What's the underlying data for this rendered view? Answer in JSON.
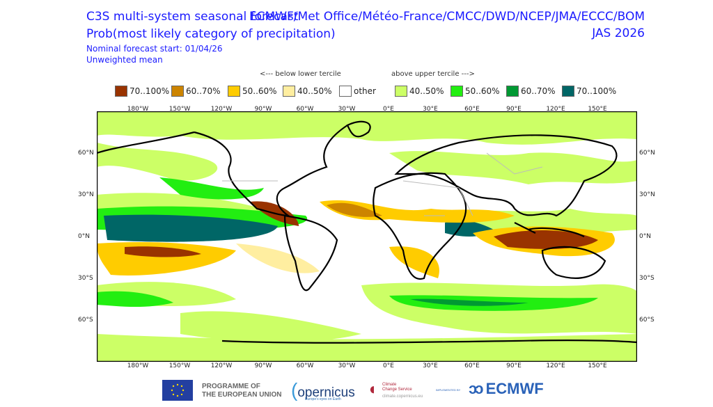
{
  "header": {
    "title": "C3S multi-system seasonal forecast",
    "subtitle": "Prob(most likely category of precipitation)",
    "providers": "ECMWF/Met Office/Météo-France/CMCC/DWD/NCEP/JMA/ECCC/BOM",
    "season": "JAS 2026",
    "forecast_start": "Nominal forecast start: 01/04/26",
    "mean_type": "Unweighted mean"
  },
  "legend": {
    "below_label": "<--- below lower tercile",
    "above_label": "above upper tercile --->",
    "items": [
      {
        "label": "70..100%",
        "color": "#993300"
      },
      {
        "label": "60..70%",
        "color": "#cc8400"
      },
      {
        "label": "50..60%",
        "color": "#ffcc00"
      },
      {
        "label": "40..50%",
        "color": "#ffeea0"
      },
      {
        "label": "other",
        "color": "#ffffff"
      },
      {
        "label": "40..50%",
        "color": "#ccff66"
      },
      {
        "label": "50..60%",
        "color": "#22ee11"
      },
      {
        "label": "60..70%",
        "color": "#009933"
      },
      {
        "label": "70..100%",
        "color": "#006666"
      }
    ]
  },
  "axes": {
    "lon_ticks": [
      "180°W",
      "150°W",
      "120°W",
      "90°W",
      "60°W",
      "30°W",
      "0°E",
      "30°E",
      "60°E",
      "90°E",
      "120°E",
      "150°E"
    ],
    "lat_ticks": [
      "60°N",
      "30°N",
      "0°N",
      "30°S",
      "60°S"
    ]
  },
  "footer": {
    "eu": "PROGRAMME OF THE EUROPEAN UNION",
    "eu_line1": "PROGRAMME OF",
    "eu_line2": "THE EUROPEAN UNION",
    "copernicus": "opernicus",
    "copernicus_tag": "Europe's eyes on Earth",
    "c3s_line1": "Climate",
    "c3s_line2": "Change Service",
    "c3s_url": "climate.copernicus.eu",
    "implemented": "IMPLEMENTED BY",
    "ecmwf": "ECMWF"
  }
}
